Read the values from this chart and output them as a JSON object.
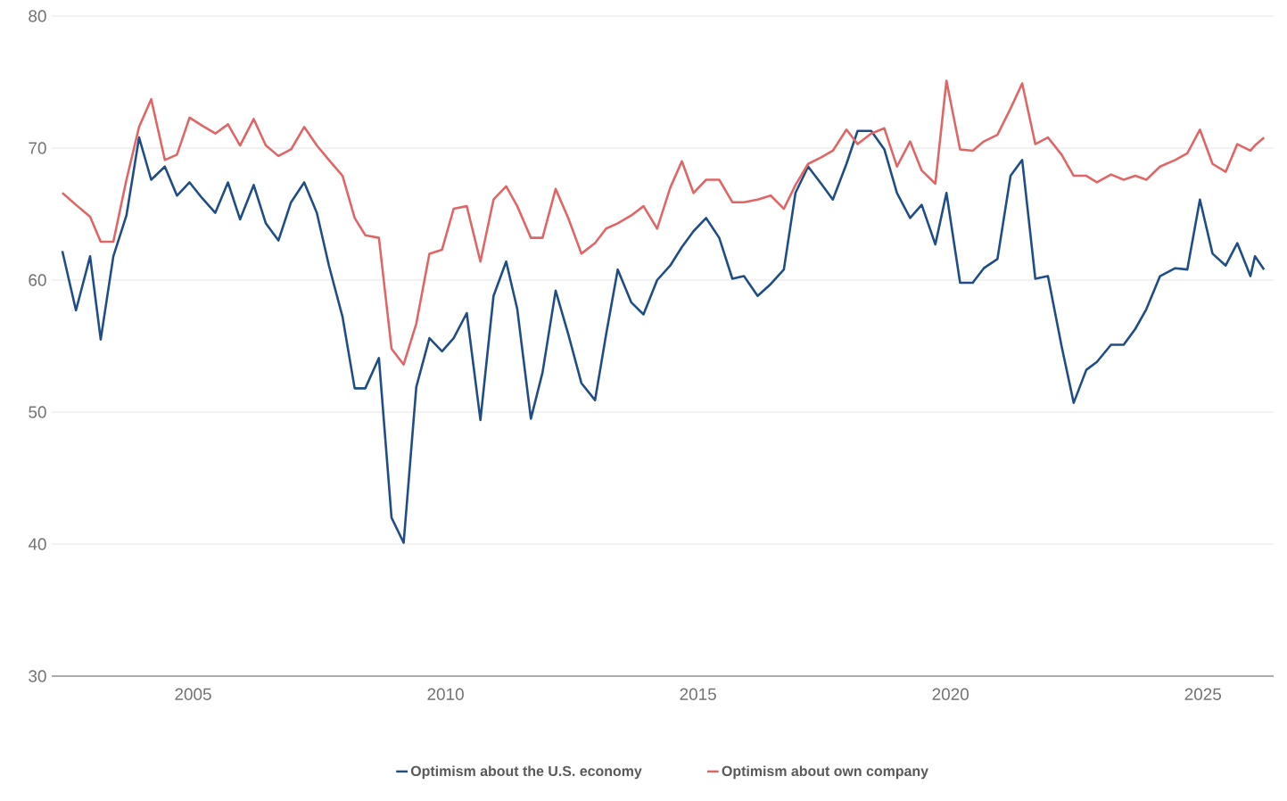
{
  "chart_data": {
    "type": "line",
    "x": [
      2002.41,
      2002.68,
      2002.96,
      2003.17,
      2003.42,
      2003.68,
      2003.93,
      2004.17,
      2004.44,
      2004.68,
      2004.93,
      2005.18,
      2005.44,
      2005.69,
      2005.93,
      2006.2,
      2006.44,
      2006.69,
      2006.94,
      2007.2,
      2007.45,
      2007.69,
      2007.96,
      2008.2,
      2008.41,
      2008.68,
      2008.93,
      2009.17,
      2009.42,
      2009.68,
      2009.93,
      2010.16,
      2010.42,
      2010.69,
      2010.95,
      2011.2,
      2011.42,
      2011.69,
      2011.92,
      2012.18,
      2012.43,
      2012.69,
      2012.96,
      2013.18,
      2013.41,
      2013.68,
      2013.92,
      2014.19,
      2014.45,
      2014.68,
      2014.91,
      2015.16,
      2015.42,
      2015.68,
      2015.91,
      2016.18,
      2016.44,
      2016.7,
      2016.93,
      2017.18,
      2017.44,
      2017.67,
      2017.94,
      2018.16,
      2018.43,
      2018.69,
      2018.94,
      2019.2,
      2019.43,
      2019.7,
      2019.92,
      2020.19,
      2020.44,
      2020.66,
      2020.93,
      2021.19,
      2021.42,
      2021.68,
      2021.93,
      2022.2,
      2022.44,
      2022.69,
      2022.9,
      2023.18,
      2023.43,
      2023.66,
      2023.88,
      2024.15,
      2024.45,
      2024.69,
      2024.94,
      2025.19,
      2025.45,
      2025.68,
      2025.94,
      2026.03,
      2026.21
    ],
    "series": [
      {
        "name": "Optimism about the U.S. economy",
        "color": "#1f4e87",
        "values": [
          62.2,
          57.7,
          61.8,
          55.5,
          61.8,
          64.9,
          70.8,
          67.6,
          68.6,
          66.4,
          67.4,
          66.2,
          65.1,
          67.4,
          64.6,
          67.2,
          64.3,
          63.0,
          65.9,
          67.4,
          65.1,
          61.1,
          57.2,
          51.8,
          51.8,
          54.1,
          42.0,
          40.1,
          51.9,
          55.6,
          54.6,
          55.6,
          57.5,
          49.4,
          58.8,
          61.4,
          57.8,
          49.5,
          53.0,
          59.2,
          55.9,
          52.2,
          50.9,
          55.9,
          60.8,
          58.3,
          57.4,
          60.0,
          61.1,
          62.5,
          63.7,
          64.7,
          63.2,
          60.1,
          60.3,
          58.8,
          59.7,
          60.8,
          66.6,
          68.6,
          67.3,
          66.1,
          68.8,
          71.3,
          71.3,
          69.9,
          66.6,
          64.7,
          65.7,
          62.7,
          66.6,
          59.8,
          59.8,
          60.9,
          61.6,
          67.9,
          69.1,
          60.1,
          60.3,
          55.0,
          50.7,
          53.2,
          53.8,
          55.1,
          55.1,
          56.3,
          57.8,
          60.3,
          60.9,
          60.8,
          66.1,
          62.0,
          61.1,
          62.8,
          60.3,
          61.8,
          60.8
        ]
      },
      {
        "name": "Optimism about own company",
        "color": "#e06666",
        "values": [
          66.6,
          65.7,
          64.8,
          62.9,
          62.9,
          67.6,
          71.6,
          73.7,
          69.1,
          69.5,
          72.3,
          71.7,
          71.1,
          71.8,
          70.2,
          72.2,
          70.2,
          69.4,
          69.9,
          71.6,
          70.2,
          69.1,
          67.9,
          64.7,
          63.4,
          63.2,
          54.8,
          53.6,
          56.7,
          62.0,
          62.3,
          65.4,
          65.6,
          61.4,
          66.1,
          67.1,
          65.6,
          63.2,
          63.2,
          66.9,
          64.7,
          62.0,
          62.8,
          63.9,
          64.3,
          64.9,
          65.6,
          63.9,
          67.0,
          69.0,
          66.6,
          67.6,
          67.6,
          65.9,
          65.9,
          66.1,
          66.4,
          65.4,
          67.2,
          68.8,
          69.3,
          69.8,
          71.4,
          70.3,
          71.1,
          71.5,
          68.6,
          70.5,
          68.3,
          67.3,
          75.1,
          69.9,
          69.8,
          70.5,
          71.0,
          73.0,
          74.9,
          70.3,
          70.8,
          69.5,
          67.9,
          67.9,
          67.4,
          68.0,
          67.6,
          67.9,
          67.6,
          68.6,
          69.1,
          69.6,
          71.4,
          68.8,
          68.2,
          70.3,
          69.8,
          70.2,
          70.8
        ]
      }
    ],
    "xlim": [
      2002.2,
      2026.4
    ],
    "ylim": [
      30,
      80
    ],
    "xticks": [
      2005,
      2010,
      2015,
      2020,
      2025
    ],
    "yticks": [
      30,
      40,
      50,
      60,
      70,
      80
    ],
    "grid": "y",
    "legend": "bottom",
    "marker": "none",
    "line_style": "solid"
  }
}
